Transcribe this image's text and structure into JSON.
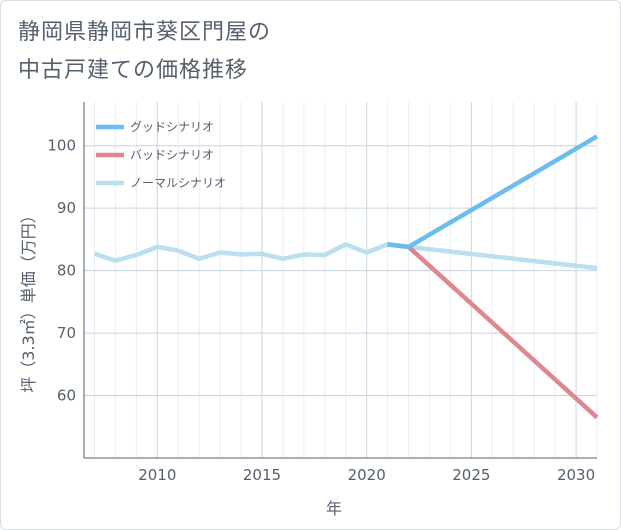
{
  "chart_data": {
    "type": "line",
    "title_lines": [
      "静岡県静岡市葵区門屋の",
      "中古戸建ての価格推移"
    ],
    "xlabel": "年",
    "ylabel": "坪（3.3㎡）単価（万円）",
    "xlim": [
      2006.5,
      2031
    ],
    "ylim": [
      50,
      107
    ],
    "x_ticks": [
      2010,
      2015,
      2020,
      2025,
      2030
    ],
    "y_ticks": [
      60,
      70,
      80,
      90,
      100
    ],
    "grid": true,
    "legend_position": "top-left",
    "series": [
      {
        "name": "グッドシナリオ",
        "color": "#6bbdf0",
        "x": [
          2021,
          2022,
          2031
        ],
        "y": [
          84.2,
          83.8,
          101.5
        ]
      },
      {
        "name": "バッドシナリオ",
        "color": "#e0868f",
        "x": [
          2021,
          2022,
          2031
        ],
        "y": [
          84.2,
          83.8,
          56.5
        ]
      },
      {
        "name": "ノーマルシナリオ",
        "color": "#badfee",
        "x": [
          2007,
          2008,
          2009,
          2010,
          2011,
          2012,
          2013,
          2014,
          2015,
          2016,
          2017,
          2018,
          2019,
          2020,
          2021,
          2022,
          2031
        ],
        "y": [
          82.7,
          81.6,
          82.5,
          83.8,
          83.2,
          81.9,
          82.9,
          82.6,
          82.7,
          81.9,
          82.6,
          82.5,
          84.2,
          82.9,
          84.2,
          83.8,
          80.4
        ]
      }
    ]
  }
}
